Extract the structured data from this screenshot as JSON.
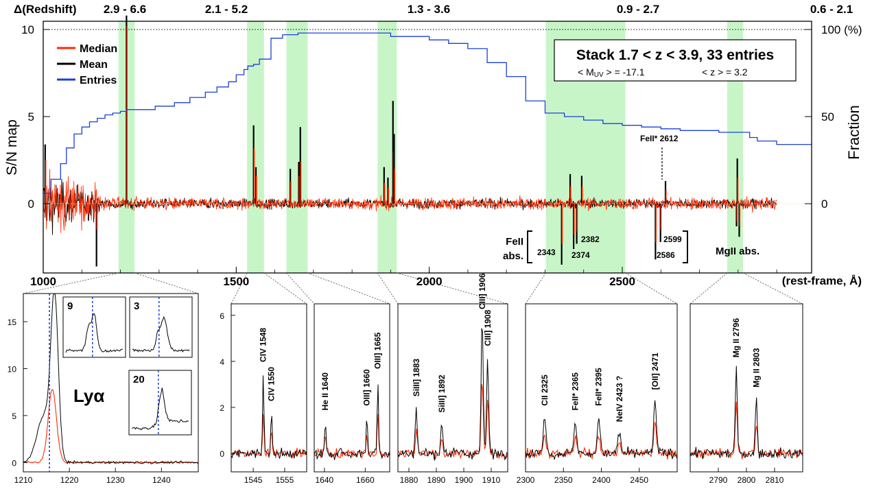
{
  "chart_data": [
    {
      "type": "line",
      "panel": "main",
      "ylabel": "S/N map",
      "y2label": "Fraction",
      "xlabel": "(rest-frame, Å)",
      "xlim": [
        1000,
        2900
      ],
      "ylim": [
        -3.7,
        10.5
      ],
      "x_ticks": [
        "1000",
        "1500",
        "2000",
        "2500"
      ],
      "x_tick_values": [
        1000,
        1500,
        2000,
        2500
      ],
      "y_ticks": [
        "0",
        "5",
        "10"
      ],
      "y_tick_values": [
        0,
        5,
        10
      ],
      "y2_ticks": [
        "0",
        "50",
        "100 (%)"
      ],
      "y2_tick_values": [
        0,
        50,
        100
      ],
      "top_axis_title": "Δ(Redshift)",
      "top_ticks": [
        "2.9 - 6.6",
        "2.1 - 5.2",
        "1.3 - 3.6",
        "0.9 - 2.7",
        "0.6 - 2.1"
      ],
      "top_tick_positions": [
        1215,
        1545,
        2030,
        2550,
        2945
      ],
      "legend": [
        {
          "label": "Median",
          "color": "#ff2a00"
        },
        {
          "label": "Mean",
          "color": "#000000"
        },
        {
          "label": "Entries",
          "color": "#1a3fd9"
        }
      ],
      "legend_placement": "top-left",
      "info_box": {
        "title": "Stack 1.7 < z < 3.9,  33 entries",
        "muv": "< M",
        "muv_sub": "UV",
        "muv_rest": " > = -17.1",
        "zmean": "< z > = 3.2"
      },
      "highlight_bands": [
        [
          1195,
          1237
        ],
        [
          1528,
          1572
        ],
        [
          1630,
          1685
        ],
        [
          1866,
          1916
        ],
        [
          2302,
          2508
        ],
        [
          2772,
          2813
        ]
      ],
      "entries_fraction": {
        "x": [
          1000,
          1020,
          1045,
          1060,
          1080,
          1100,
          1120,
          1140,
          1160,
          1180,
          1200,
          1215,
          1240,
          1290,
          1340,
          1380,
          1420,
          1450,
          1480,
          1500,
          1520,
          1530,
          1545,
          1560,
          1590,
          1620,
          1640,
          1660,
          1700,
          1800,
          1900,
          1950,
          2000,
          2050,
          2100,
          2150,
          2200,
          2250,
          2300,
          2350,
          2400,
          2450,
          2500,
          2550,
          2600,
          2650,
          2700,
          2750,
          2800,
          2830,
          2850,
          2900
        ],
        "values": [
          6,
          14,
          23,
          32,
          40,
          44,
          47,
          49,
          51,
          52,
          53,
          54,
          54,
          56,
          58,
          61,
          64,
          67,
          70,
          74,
          77,
          79,
          80,
          83,
          95,
          97,
          97,
          98,
          98,
          98,
          96,
          96,
          94,
          92,
          89,
          81,
          73,
          59,
          52,
          50,
          48,
          46,
          45,
          44,
          43,
          42,
          42,
          41,
          41,
          38,
          36,
          34
        ]
      },
      "spikes": [
        {
          "x": 1215.7,
          "mean": 10.8,
          "median": 10.2
        },
        {
          "x": 1545,
          "mean": 4.5,
          "median": 3.2
        },
        {
          "x": 1551,
          "mean": 2.1,
          "median": 1.6
        },
        {
          "x": 1640,
          "mean": 2.0,
          "median": 1.3
        },
        {
          "x": 1662,
          "mean": 2.4,
          "median": 1.6
        },
        {
          "x": 1666,
          "mean": 4.4,
          "median": 2.4
        },
        {
          "x": 1883,
          "mean": 2.1,
          "median": 1.2
        },
        {
          "x": 1893,
          "mean": 1.5,
          "median": 0.9
        },
        {
          "x": 1906,
          "mean": 5.9,
          "median": 3.0
        },
        {
          "x": 1909,
          "mean": 4.0,
          "median": 2.0
        },
        {
          "x": 2343,
          "mean": -3.5,
          "median": -2.3
        },
        {
          "x": 2374,
          "mean": -2.6,
          "median": -1.8
        },
        {
          "x": 2382,
          "mean": -2.3,
          "median": -1.6
        },
        {
          "x": 2365,
          "mean": 1.7,
          "median": 1.0
        },
        {
          "x": 2395,
          "mean": 1.6,
          "median": 1.0
        },
        {
          "x": 2586,
          "mean": -3.2,
          "median": -2.2
        },
        {
          "x": 2599,
          "mean": -2.2,
          "median": -1.5
        },
        {
          "x": 2612,
          "mean": 1.3,
          "median": 0.8
        },
        {
          "x": 2796,
          "mean": -1.3,
          "median": -1.0
        },
        {
          "x": 2803,
          "mean": -1.9,
          "median": -1.3
        },
        {
          "x": 2798,
          "mean": 2.6,
          "median": 1.5
        },
        {
          "x": 1138,
          "mean": -3.6,
          "median": -1.5
        },
        {
          "x": 1005,
          "mean": 3.4,
          "median": 2.5
        }
      ],
      "annotations": {
        "fe2_abs": "FeII",
        "fe2_abs2": "abs.",
        "fe2_2343": "2343",
        "fe2_2374": "2374",
        "fe2_2382": "2382",
        "fe2_2586": "2586",
        "fe2_2599": "2599",
        "mg2_abs": "MgII abs.",
        "fe2star_2612": "FeII* 2612"
      }
    },
    {
      "type": "line",
      "panel": "lya",
      "xlim": [
        1210,
        1248
      ],
      "ylim": [
        -1,
        18
      ],
      "x_ticks": [
        "1210",
        "1220",
        "1230",
        "1240"
      ],
      "x_tick_values": [
        1210,
        1220,
        1230,
        1240
      ],
      "y_ticks": [
        "0",
        "5",
        "10",
        "15"
      ],
      "y_tick_values": [
        0,
        5,
        10,
        15
      ],
      "label": "Lyα",
      "line_marker": 1215.67,
      "lines": [
        {
          "center": 1216.8,
          "amp": 17.0,
          "width": 0.8,
          "series": "mean"
        },
        {
          "center": 1214.5,
          "amp": 5.0,
          "width": 1.5,
          "series": "mean"
        },
        {
          "center": 1216.3,
          "amp": 7.8,
          "width": 0.9,
          "series": "median"
        }
      ],
      "insets": [
        {
          "label": "9"
        },
        {
          "label": "3"
        },
        {
          "label": "20"
        }
      ]
    },
    {
      "type": "line",
      "panel": "civ",
      "xlim": [
        1538,
        1562
      ],
      "ylim": [
        -0.8,
        6.5
      ],
      "x_ticks": [
        "1545",
        "1555"
      ],
      "x_tick_values": [
        1545,
        1555
      ],
      "y_ticks": [
        "0",
        "2",
        "4",
        "6"
      ],
      "y_tick_values": [
        0,
        2,
        4,
        6
      ],
      "lines": [
        {
          "center": 1548.2,
          "amp": 3.5,
          "label": "CIV 1548"
        },
        {
          "center": 1550.8,
          "amp": 1.8,
          "label": "CIV 1550"
        }
      ]
    },
    {
      "type": "line",
      "panel": "heii",
      "xlim": [
        1635,
        1672
      ],
      "ylim": [
        -0.8,
        6.5
      ],
      "x_ticks": [
        "1640",
        "1660"
      ],
      "x_tick_values": [
        1640,
        1660
      ],
      "lines": [
        {
          "center": 1640.4,
          "amp": 1.4,
          "label": "He II 1640"
        },
        {
          "center": 1660.8,
          "amp": 1.6,
          "label": "OIII] 1660"
        },
        {
          "center": 1666.2,
          "amp": 3.2,
          "label": "OIII] 1665"
        }
      ]
    },
    {
      "type": "line",
      "panel": "ciii",
      "xlim": [
        1876,
        1916
      ],
      "ylim": [
        -0.8,
        6.5
      ],
      "x_ticks": [
        "1880",
        "1890",
        "1900",
        "1910"
      ],
      "x_tick_values": [
        1880,
        1890,
        1900,
        1910
      ],
      "lines": [
        {
          "center": 1882.7,
          "amp": 2.0,
          "label": "SiIII] 1883"
        },
        {
          "center": 1892.0,
          "amp": 1.3,
          "label": "SiIII] 1892"
        },
        {
          "center": 1906.7,
          "amp": 6.0,
          "label": "CIII] 1906"
        },
        {
          "center": 1908.7,
          "amp": 4.2,
          "label": "CIII] 1908"
        }
      ]
    },
    {
      "type": "line",
      "panel": "feii",
      "xlim": [
        2300,
        2500
      ],
      "ylim": [
        -0.8,
        6.5
      ],
      "x_ticks": [
        "2300",
        "2350",
        "2400",
        "2450"
      ],
      "x_tick_values": [
        2300,
        2350,
        2400,
        2450
      ],
      "lines": [
        {
          "center": 2325.4,
          "amp": 1.6,
          "label": "CII 2325"
        },
        {
          "center": 2365.6,
          "amp": 1.4,
          "label": "FeII* 2365"
        },
        {
          "center": 2396.4,
          "amp": 1.6,
          "label": "FeII* 2395"
        },
        {
          "center": 2423.8,
          "amp": 0.9,
          "label": "NeIV 2423 ?"
        },
        {
          "center": 2471.0,
          "amp": 2.3,
          "label": "[OII] 2471"
        }
      ]
    },
    {
      "type": "line",
      "panel": "mgii",
      "xlim": [
        2780,
        2820
      ],
      "ylim": [
        -0.8,
        6.5
      ],
      "x_ticks": [
        "2790",
        "2800",
        "2810"
      ],
      "x_tick_values": [
        2790,
        2800,
        2810
      ],
      "lines": [
        {
          "center": 2796.4,
          "amp": 3.7,
          "label": "Mg II 2796"
        },
        {
          "center": 2803.5,
          "amp": 2.4,
          "label": "Mg II 2803"
        }
      ]
    }
  ]
}
